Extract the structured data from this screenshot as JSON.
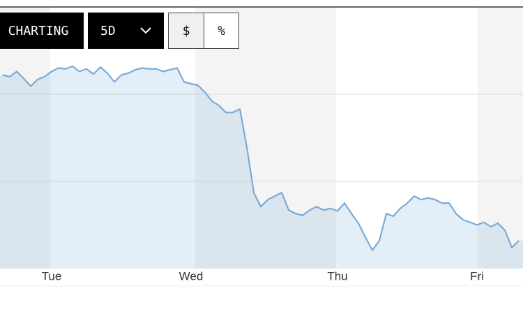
{
  "toolbar": {
    "charting": "CHARTING",
    "range": "5D",
    "dollar": "$",
    "percent": "%"
  },
  "chart_data": {
    "type": "line",
    "categories": [
      null,
      null,
      null,
      null,
      null,
      null,
      null,
      "Tue",
      null,
      null,
      null,
      null,
      null,
      null,
      null,
      null,
      null,
      null,
      null,
      null,
      null,
      null,
      null,
      null,
      null,
      null,
      null,
      "Wed",
      null,
      null,
      null,
      null,
      null,
      null,
      null,
      null,
      null,
      null,
      null,
      null,
      null,
      null,
      null,
      null,
      null,
      null,
      null,
      null,
      "Thu",
      null,
      null,
      null,
      null,
      null,
      null,
      null,
      null,
      null,
      null,
      null,
      null,
      null,
      null,
      null,
      null,
      null,
      null,
      null,
      "Fri",
      null,
      null,
      null,
      null,
      null,
      null
    ],
    "values": [
      2.22,
      2.2,
      2.26,
      2.18,
      2.09,
      2.17,
      2.2,
      2.26,
      2.3,
      2.29,
      2.32,
      2.26,
      2.29,
      2.23,
      2.31,
      2.24,
      2.14,
      2.22,
      2.24,
      2.28,
      2.3,
      2.29,
      2.29,
      2.26,
      2.28,
      2.3,
      2.14,
      2.12,
      2.1,
      2.02,
      1.92,
      1.87,
      1.79,
      1.79,
      1.83,
      1.39,
      0.87,
      0.71,
      0.79,
      0.83,
      0.87,
      0.67,
      0.63,
      0.61,
      0.67,
      0.71,
      0.67,
      0.69,
      0.66,
      0.75,
      0.63,
      0.52,
      0.36,
      0.21,
      0.32,
      0.63,
      0.6,
      0.69,
      0.75,
      0.83,
      0.79,
      0.81,
      0.79,
      0.75,
      0.75,
      0.63,
      0.56,
      0.53,
      0.5,
      0.53,
      0.48,
      0.52,
      0.44,
      0.24,
      0.32
    ],
    "color": "#7aaad8",
    "ylim": [
      0,
      3
    ],
    "yticks": [
      1,
      2
    ],
    "grid": true
  }
}
